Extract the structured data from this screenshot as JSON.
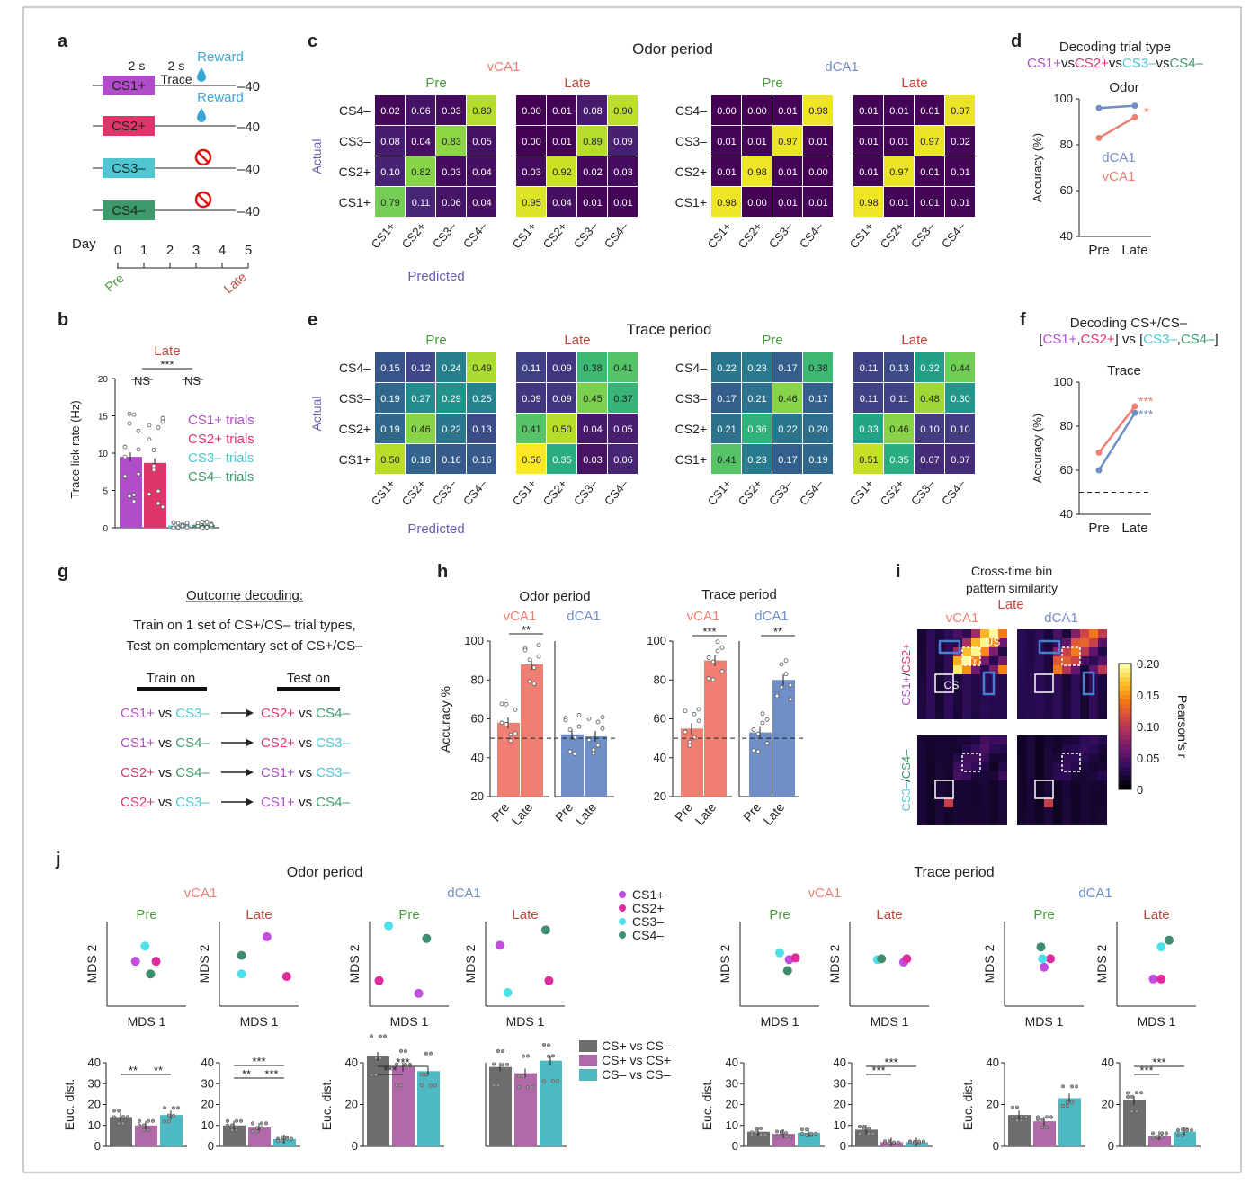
{
  "colors": {
    "cs1": "#b04ec9",
    "cs2": "#e0356b",
    "cs3": "#4fc6d2",
    "cs4": "#3e9a6a",
    "vca1": "#ef7f72",
    "dca1": "#6f8fc6",
    "pre": "#4a9b3e",
    "late": "#c0463b",
    "grey": "#6e6e6e",
    "mcs1": "#c14ee0",
    "mcs2": "#e02a9e",
    "mcs3": "#4de0e8",
    "mcs4": "#3e8e6e",
    "viridis_dark": "#46156a",
    "viridis_yellow": "#f4e235",
    "accent": "#6a5fb3"
  },
  "a": {
    "label": "a",
    "durations": [
      "2 s",
      "2 s"
    ],
    "trace": "Trace",
    "reward": "Reward",
    "trials": [
      "CS1+",
      "CS2+",
      "CS3–",
      "CS4–"
    ],
    "counts": [
      "–40",
      "–40",
      "–40",
      "–40"
    ],
    "day": "Day",
    "days": [
      "0",
      "1",
      "2",
      "3",
      "4",
      "5"
    ],
    "pre": "Pre",
    "late": "Late",
    "trial_colors": [
      "#b04ec9",
      "#e0356b",
      "#4fc6d2",
      "#3e9a6a"
    ],
    "icons": [
      "water-drop-icon",
      "water-drop-icon",
      "no-symbol-icon",
      "no-symbol-icon"
    ]
  },
  "b": {
    "label": "b",
    "late": "Late",
    "sig": [
      "***",
      "NS",
      "NS"
    ],
    "ylabel": "Trace lick rate (Hz)",
    "yticks": [
      "0",
      "5",
      "10",
      "15",
      "20"
    ],
    "legend": [
      "CS1+ trials",
      "CS2+ trials",
      "CS3– trials",
      "CS4– trials"
    ],
    "bar_values": [
      9.5,
      8.7,
      0.3,
      0.4
    ]
  },
  "c": {
    "label": "c",
    "title": "Odor period",
    "regions": [
      "vCA1",
      "dCA1"
    ],
    "phases": [
      "Pre",
      "Late",
      "Pre",
      "Late"
    ],
    "rows": [
      "CS4–",
      "CS3–",
      "CS2+",
      "CS1+"
    ],
    "cols": [
      "CS1+",
      "CS2+",
      "CS3–",
      "CS4–"
    ],
    "actual": "Actual",
    "predicted": "Predicted",
    "matrices": [
      [
        [
          "0.02",
          "0.06",
          "0.03",
          "0.89"
        ],
        [
          "0.08",
          "0.04",
          "0.83",
          "0.05"
        ],
        [
          "0.10",
          "0.82",
          "0.03",
          "0.04"
        ],
        [
          "0.79",
          "0.11",
          "0.06",
          "0.04"
        ]
      ],
      [
        [
          "0.00",
          "0.01",
          "0.08",
          "0.90"
        ],
        [
          "0.00",
          "0.01",
          "0.89",
          "0.09"
        ],
        [
          "0.03",
          "0.92",
          "0.02",
          "0.03"
        ],
        [
          "0.95",
          "0.04",
          "0.01",
          "0.01"
        ]
      ],
      [
        [
          "0.00",
          "0.00",
          "0.01",
          "0.98"
        ],
        [
          "0.01",
          "0.01",
          "0.97",
          "0.01"
        ],
        [
          "0.01",
          "0.98",
          "0.01",
          "0.00"
        ],
        [
          "0.98",
          "0.00",
          "0.01",
          "0.01"
        ]
      ],
      [
        [
          "0.01",
          "0.01",
          "0.01",
          "0.97"
        ],
        [
          "0.01",
          "0.01",
          "0.97",
          "0.02"
        ],
        [
          "0.01",
          "0.97",
          "0.01",
          "0.01"
        ],
        [
          "0.98",
          "0.01",
          "0.01",
          "0.01"
        ]
      ]
    ]
  },
  "d": {
    "label": "d",
    "title": "Decoding trial type",
    "subtitle": [
      "CS1+",
      "vs",
      "CS2+",
      "vs",
      "CS3–",
      "vs",
      "CS4–"
    ],
    "period": "Odor",
    "ylabel": "Accuracy (%)",
    "yticks": [
      "40",
      "60",
      "80",
      "100"
    ],
    "x": [
      "Pre",
      "Late"
    ],
    "series": [
      {
        "name": "dCA1",
        "values": [
          96,
          97
        ]
      },
      {
        "name": "vCA1",
        "values": [
          83,
          92
        ]
      }
    ],
    "sig": "*"
  },
  "e": {
    "label": "e",
    "title": "Trace period",
    "regions": [
      "vCA1",
      "dCA1"
    ],
    "phases": [
      "Pre",
      "Late",
      "Pre",
      "Late"
    ],
    "rows": [
      "CS4–",
      "CS3–",
      "CS2+",
      "CS1+"
    ],
    "cols": [
      "CS1+",
      "CS2+",
      "CS3–",
      "CS4–"
    ],
    "actual": "Actual",
    "predicted": "Predicted",
    "matrices": [
      [
        [
          "0.15",
          "0.12",
          "0.24",
          "0.49"
        ],
        [
          "0.19",
          "0.27",
          "0.29",
          "0.25"
        ],
        [
          "0.19",
          "0.46",
          "0.22",
          "0.13"
        ],
        [
          "0.50",
          "0.18",
          "0.16",
          "0.16"
        ]
      ],
      [
        [
          "0.11",
          "0.09",
          "0.38",
          "0.41"
        ],
        [
          "0.09",
          "0.09",
          "0.45",
          "0.37"
        ],
        [
          "0.41",
          "0.50",
          "0.04",
          "0.05"
        ],
        [
          "0.56",
          "0.35",
          "0.03",
          "0.06"
        ]
      ],
      [
        [
          "0.22",
          "0.23",
          "0.17",
          "0.38"
        ],
        [
          "0.17",
          "0.21",
          "0.46",
          "0.17"
        ],
        [
          "0.21",
          "0.36",
          "0.22",
          "0.20"
        ],
        [
          "0.41",
          "0.23",
          "0.17",
          "0.19"
        ]
      ],
      [
        [
          "0.11",
          "0.13",
          "0.32",
          "0.44"
        ],
        [
          "0.11",
          "0.11",
          "0.48",
          "0.30"
        ],
        [
          "0.33",
          "0.46",
          "0.10",
          "0.10"
        ],
        [
          "0.51",
          "0.35",
          "0.07",
          "0.07"
        ]
      ]
    ]
  },
  "f": {
    "label": "f",
    "title": "Decoding CS+/CS–",
    "subtitle": [
      "[",
      "CS1+",
      ",",
      "CS2+",
      "] vs [",
      "CS3–",
      ",",
      "CS4–",
      "]"
    ],
    "period": "Trace",
    "ylabel": "Accuracy (%)",
    "yticks": [
      "40",
      "60",
      "80",
      "100"
    ],
    "x": [
      "Pre",
      "Late"
    ],
    "series": [
      {
        "name": "vCA1",
        "values": [
          68,
          89
        ]
      },
      {
        "name": "dCA1",
        "values": [
          60,
          86
        ]
      }
    ],
    "sig": [
      "***",
      "***"
    ]
  },
  "g": {
    "label": "g",
    "title": "Outcome decoding:",
    "desc1": "Train on 1 set of CS+/CS– trial types,",
    "desc2": "Test on complementary set of CS+/CS–",
    "train_on": "Train on",
    "test_on": "Test on",
    "pairs": [
      [
        [
          "CS1+",
          "cs1"
        ],
        [
          " vs ",
          ""
        ],
        [
          "CS3–",
          "cs3"
        ],
        [
          "CS2+",
          "cs2"
        ],
        [
          " vs ",
          ""
        ],
        [
          "CS4–",
          "cs4"
        ]
      ],
      [
        [
          "CS1+",
          "cs1"
        ],
        [
          " vs ",
          ""
        ],
        [
          "CS4–",
          "cs4"
        ],
        [
          "CS2+",
          "cs2"
        ],
        [
          " vs ",
          ""
        ],
        [
          "CS3–",
          "cs3"
        ]
      ],
      [
        [
          "CS2+",
          "cs2"
        ],
        [
          " vs ",
          ""
        ],
        [
          "CS4–",
          "cs4"
        ],
        [
          "CS1+",
          "cs1"
        ],
        [
          " vs ",
          ""
        ],
        [
          "CS3–",
          "cs3"
        ]
      ],
      [
        [
          "CS2+",
          "cs2"
        ],
        [
          " vs ",
          ""
        ],
        [
          "CS3–",
          "cs3"
        ],
        [
          "CS1+",
          "cs1"
        ],
        [
          " vs ",
          ""
        ],
        [
          "CS4–",
          "cs4"
        ]
      ]
    ]
  },
  "h": {
    "label": "h",
    "panels": [
      "Odor period",
      "Trace period"
    ],
    "regions": [
      "vCA1",
      "dCA1"
    ],
    "ylabel": "Accuracy %",
    "yticks": [
      "20",
      "40",
      "60",
      "80",
      "100"
    ],
    "x": [
      "Pre",
      "Late"
    ],
    "sig": [
      "**",
      "***",
      "**"
    ],
    "values": [
      [
        58,
        88
      ],
      [
        52,
        51
      ],
      [
        55,
        90
      ],
      [
        53,
        80
      ]
    ]
  },
  "i": {
    "label": "i",
    "title1": "Cross-time bin",
    "title2": "pattern similarity",
    "phase": "Late",
    "regions": [
      "vCA1",
      "dCA1"
    ],
    "rowlabels": [
      "CS1+/CS2+",
      "CS3–/CS4–"
    ],
    "box_labels": [
      "US",
      "Tr",
      "CS"
    ],
    "cbar_label": "Pearson's r",
    "cbar_ticks": [
      "0.20",
      "0.15",
      "0.10",
      "0.05",
      "0"
    ]
  },
  "j": {
    "label": "j",
    "periods": [
      "Odor period",
      "Trace period"
    ],
    "regions": [
      "vCA1",
      "dCA1",
      "vCA1",
      "dCA1"
    ],
    "phases": [
      "Pre",
      "Late"
    ],
    "mds_x": "MDS 1",
    "mds_y": "MDS 2",
    "legend": [
      "CS1+",
      "CS2+",
      "CS3–",
      "CS4–"
    ],
    "bar_legend": [
      "CS+ vs CS–",
      "CS+ vs CS+",
      "CS– vs CS–"
    ],
    "ylabel": "Euc. dist.",
    "yticks_a": [
      "0",
      "10",
      "20",
      "30",
      "40"
    ],
    "yticks_b": [
      "0",
      "20",
      "40"
    ],
    "mds": [
      [
        [
          0.36,
          0.53
        ],
        [
          0.62,
          0.53
        ],
        [
          0.48,
          0.71
        ],
        [
          0.55,
          0.38
        ]
      ],
      [
        [
          0.6,
          0.82
        ],
        [
          0.85,
          0.35
        ],
        [
          0.28,
          0.38
        ],
        [
          0.28,
          0.6
        ]
      ],
      [
        [
          0.62,
          0.15
        ],
        [
          0.12,
          0.3
        ],
        [
          0.24,
          0.95
        ],
        [
          0.72,
          0.8
        ]
      ],
      [
        [
          0.18,
          0.72
        ],
        [
          0.8,
          0.3
        ],
        [
          0.28,
          0.16
        ],
        [
          0.76,
          0.9
        ]
      ],
      [
        [
          0.62,
          0.55
        ],
        [
          0.7,
          0.57
        ],
        [
          0.5,
          0.63
        ],
        [
          0.6,
          0.42
        ]
      ],
      [
        [
          0.68,
          0.52
        ],
        [
          0.72,
          0.56
        ],
        [
          0.35,
          0.55
        ],
        [
          0.4,
          0.56
        ]
      ],
      [
        [
          0.5,
          0.46
        ],
        [
          0.58,
          0.56
        ],
        [
          0.48,
          0.56
        ],
        [
          0.46,
          0.7
        ]
      ],
      [
        [
          0.46,
          0.32
        ],
        [
          0.56,
          0.32
        ],
        [
          0.56,
          0.7
        ],
        [
          0.66,
          0.78
        ]
      ]
    ],
    "bars": [
      [
        14,
        10,
        15
      ],
      [
        10,
        9,
        3.5
      ],
      [
        43,
        38,
        36
      ],
      [
        38,
        35,
        41
      ],
      [
        7,
        6,
        6.5
      ],
      [
        8,
        2,
        2
      ],
      [
        15,
        12,
        23
      ],
      [
        22,
        5,
        7
      ]
    ],
    "bar_max": [
      40,
      40,
      40,
      40,
      40,
      40,
      40,
      40
    ],
    "bar_yticks": [
      "a",
      "a",
      "b",
      "b",
      "a",
      "a",
      "b",
      "b"
    ],
    "sig": [
      [
        "**",
        "**"
      ],
      [
        "***",
        "**",
        "***"
      ],
      [
        "***",
        "***"
      ],
      [],
      [],
      [
        "***",
        "***"
      ],
      [],
      [
        "***",
        "***"
      ]
    ]
  }
}
